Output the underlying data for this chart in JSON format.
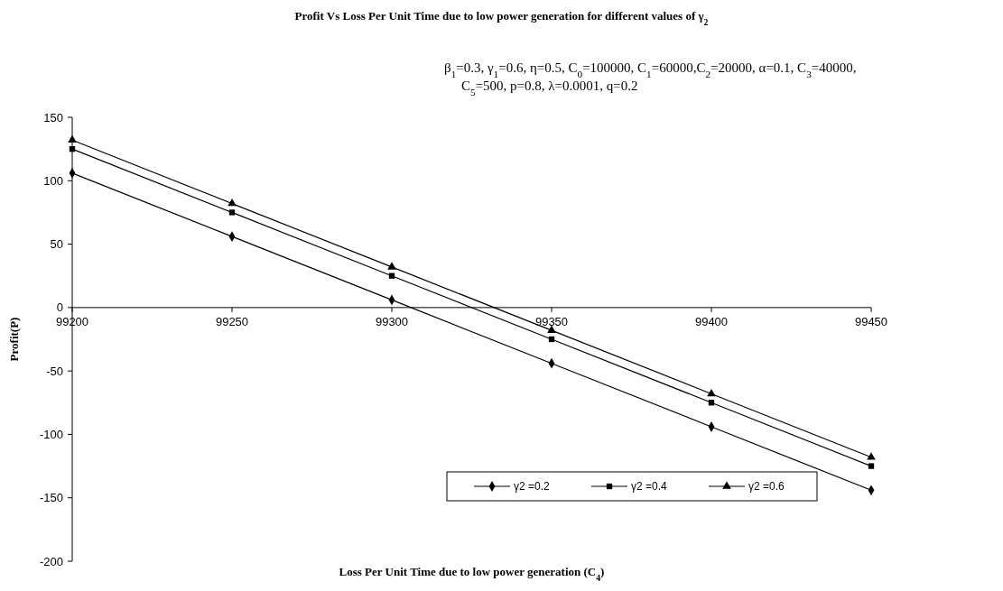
{
  "chart_data": {
    "type": "line",
    "title": "Profit Vs Loss Per Unit Time due to low power generation for different  values of  γ$_{2}$",
    "xlabel": "Loss Per Unit Time due to low power generation (C$_{4}$)",
    "ylabel": "Profit(P)",
    "x": [
      99200,
      99250,
      99300,
      99350,
      99400,
      99450
    ],
    "series": [
      {
        "name": "γ2 =0.2",
        "color": "#000000",
        "marker": "diamond",
        "values": [
          106,
          56,
          6,
          -44,
          -94,
          -144
        ]
      },
      {
        "name": "γ2 =0.4",
        "color": "#000000",
        "marker": "square",
        "values": [
          125,
          75,
          25,
          -25,
          -75,
          -125
        ]
      },
      {
        "name": "γ2 =0.6",
        "color": "#000000",
        "marker": "triangle",
        "values": [
          132,
          82,
          32,
          -18,
          -68,
          -118
        ]
      }
    ],
    "xlim": [
      99200,
      99450
    ],
    "xticks": [
      99200,
      99250,
      99300,
      99350,
      99400,
      99450
    ],
    "ylim": [
      -200,
      150
    ],
    "yticks": [
      -200,
      -150,
      -100,
      -50,
      0,
      50,
      100,
      150
    ],
    "annotations": [
      "β$_{1}$=0.3, γ$_{1}$=0.6, η=0.5, C$_{0}$=100000, C$_{1}$=60000,C$_{2}$=20000, α=0.1, C$_{3}$=40000,",
      "C$_{5}$=500,  p=0.8, λ=0.0001, q=0.2"
    ],
    "legend": "bottom right",
    "grid": false,
    "line_style": "solid"
  }
}
